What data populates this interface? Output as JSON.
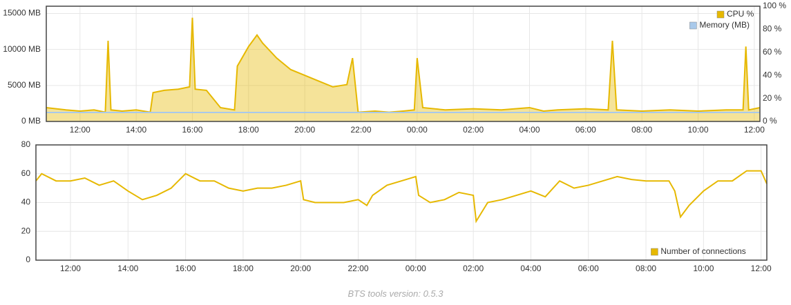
{
  "chart_data": [
    {
      "type": "line",
      "xlim": [
        10.8,
        36.2
      ],
      "xticks": [
        {
          "value": 12,
          "label": "12:00"
        },
        {
          "value": 14,
          "label": "14:00"
        },
        {
          "value": 16,
          "label": "16:00"
        },
        {
          "value": 18,
          "label": "18:00"
        },
        {
          "value": 20,
          "label": "20:00"
        },
        {
          "value": 22,
          "label": "22:00"
        },
        {
          "value": 24,
          "label": "00:00"
        },
        {
          "value": 26,
          "label": "02:00"
        },
        {
          "value": 28,
          "label": "04:00"
        },
        {
          "value": 30,
          "label": "06:00"
        },
        {
          "value": 32,
          "label": "08:00"
        },
        {
          "value": 34,
          "label": "10:00"
        },
        {
          "value": 36,
          "label": "12:00"
        }
      ],
      "ylim": [
        0,
        16000
      ],
      "yticks": [
        {
          "value": 0,
          "label": "0 MB"
        },
        {
          "value": 5000,
          "label": "5000 MB"
        },
        {
          "value": 10000,
          "label": "10000 MB"
        },
        {
          "value": 15000,
          "label": "15000 MB"
        }
      ],
      "y2lim": [
        0,
        100
      ],
      "y2ticks": [
        {
          "value": 0,
          "label": "0 %"
        },
        {
          "value": 20,
          "label": "20 %"
        },
        {
          "value": 40,
          "label": "40 %"
        },
        {
          "value": 60,
          "label": "60 %"
        },
        {
          "value": 80,
          "label": "80 %"
        },
        {
          "value": 100,
          "label": "100 %"
        }
      ],
      "grid": true,
      "legend": "upper right",
      "series": [
        {
          "name": "CPU %",
          "color": "#e6b800",
          "area": true,
          "axis": "y2",
          "x": [
            10.8,
            11.5,
            12,
            12.5,
            12.9,
            13.0,
            13.1,
            13.5,
            14,
            14.5,
            14.6,
            15,
            15.5,
            15.9,
            16.0,
            16.1,
            16.5,
            17,
            17.5,
            17.6,
            18,
            18.3,
            18.5,
            19,
            19.5,
            20,
            20.5,
            21,
            21.5,
            21.7,
            21.9,
            22.5,
            23,
            23.5,
            23.9,
            24.0,
            24.2,
            25,
            26,
            27,
            28,
            28.5,
            29,
            30,
            30.8,
            30.95,
            31.1,
            32,
            33,
            34,
            35,
            35.6,
            35.7,
            35.8,
            36.2
          ],
          "values": [
            12,
            10,
            9,
            10,
            8,
            70,
            10,
            9,
            10,
            8,
            25,
            27,
            28,
            30,
            90,
            28,
            27,
            12,
            10,
            48,
            65,
            75,
            68,
            55,
            45,
            40,
            35,
            30,
            32,
            55,
            8,
            9,
            8,
            9,
            10,
            55,
            12,
            10,
            11,
            10,
            12,
            9,
            10,
            11,
            10,
            70,
            10,
            9,
            10,
            9,
            10,
            10,
            65,
            10,
            12
          ]
        },
        {
          "name": "Memory (MB)",
          "color": "#a9c9ea",
          "axis": "y",
          "x": [
            10.8,
            36.2
          ],
          "values": [
            1250,
            1250
          ]
        }
      ]
    },
    {
      "type": "line",
      "xlim": [
        10.8,
        36.2
      ],
      "xticks": [
        {
          "value": 12,
          "label": "12:00"
        },
        {
          "value": 14,
          "label": "14:00"
        },
        {
          "value": 16,
          "label": "16:00"
        },
        {
          "value": 18,
          "label": "18:00"
        },
        {
          "value": 20,
          "label": "20:00"
        },
        {
          "value": 22,
          "label": "22:00"
        },
        {
          "value": 24,
          "label": "00:00"
        },
        {
          "value": 26,
          "label": "02:00"
        },
        {
          "value": 28,
          "label": "04:00"
        },
        {
          "value": 30,
          "label": "06:00"
        },
        {
          "value": 32,
          "label": "08:00"
        },
        {
          "value": 34,
          "label": "10:00"
        },
        {
          "value": 36,
          "label": "12:00"
        }
      ],
      "ylim": [
        0,
        80
      ],
      "yticks": [
        0,
        20,
        40,
        60,
        80
      ],
      "grid": true,
      "legend": "lower right",
      "series": [
        {
          "name": "Number of connections",
          "color": "#e6b800",
          "x": [
            10.8,
            11,
            11.5,
            12,
            12.5,
            13,
            13.5,
            14,
            14.5,
            15,
            15.5,
            16,
            16.5,
            17,
            17.5,
            18,
            18.5,
            19,
            19.5,
            20,
            20.1,
            20.5,
            21,
            21.5,
            22,
            22.3,
            22.5,
            23,
            23.5,
            24,
            24.1,
            24.5,
            25,
            25.5,
            26,
            26.1,
            26.5,
            27,
            27.5,
            28,
            28.5,
            29,
            29.5,
            30,
            30.5,
            31,
            31.5,
            32,
            32.5,
            32.8,
            33,
            33.2,
            33.5,
            34,
            34.5,
            35,
            35.5,
            36,
            36.2
          ],
          "values": [
            55,
            60,
            55,
            55,
            57,
            52,
            55,
            48,
            42,
            45,
            50,
            60,
            55,
            55,
            50,
            48,
            50,
            50,
            52,
            55,
            42,
            40,
            40,
            40,
            42,
            38,
            45,
            52,
            55,
            58,
            45,
            40,
            42,
            47,
            45,
            27,
            40,
            42,
            45,
            48,
            44,
            55,
            50,
            52,
            55,
            58,
            56,
            55,
            55,
            55,
            48,
            30,
            38,
            48,
            55,
            55,
            62,
            62,
            53
          ]
        }
      ]
    }
  ],
  "footer": "BTS tools version: 0.5.3"
}
